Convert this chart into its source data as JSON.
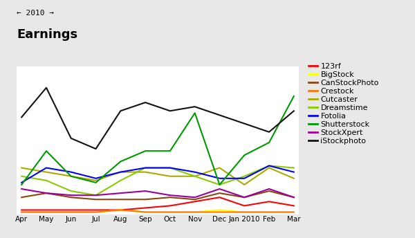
{
  "title": "Earnings",
  "subtitle": "← 2010 →",
  "months": [
    "Apr",
    "May",
    "Jun",
    "Jul",
    "Aug",
    "Sep",
    "Oct",
    "Nov",
    "Dec",
    "Jan 2010",
    "Feb",
    "Mar"
  ],
  "series": {
    "123rf": {
      "color": "#ff0000",
      "data": [
        2,
        2,
        2,
        2,
        2,
        3,
        4,
        6,
        8,
        4,
        6,
        4
      ]
    },
    "BigStock": {
      "color": "#ffff00",
      "data": [
        1,
        1,
        1,
        1,
        2,
        1,
        1,
        1,
        2,
        1,
        1,
        1
      ]
    },
    "CanStockPhoto": {
      "color": "#8B4513",
      "data": [
        8,
        10,
        8,
        7,
        7,
        7,
        8,
        7,
        10,
        8,
        11,
        8
      ]
    },
    "Crestock": {
      "color": "#ff7700",
      "data": [
        1,
        1,
        1,
        1,
        2,
        1,
        1,
        1,
        1,
        1,
        1,
        1
      ]
    },
    "Cutcaster": {
      "color": "#aaaa00",
      "data": [
        22,
        20,
        18,
        16,
        20,
        20,
        18,
        18,
        22,
        14,
        22,
        17
      ]
    },
    "Dreamstime": {
      "color": "#88cc00",
      "data": [
        18,
        16,
        11,
        9,
        16,
        22,
        22,
        18,
        14,
        18,
        23,
        22
      ]
    },
    "Fotolia": {
      "color": "#0000ff",
      "data": [
        15,
        22,
        20,
        17,
        20,
        22,
        22,
        20,
        17,
        17,
        23,
        20
      ]
    },
    "Shutterstock": {
      "color": "#009900",
      "data": [
        14,
        30,
        18,
        15,
        25,
        30,
        30,
        48,
        14,
        28,
        34,
        56
      ]
    },
    "StockXpert": {
      "color": "#990099",
      "data": [
        12,
        10,
        9,
        9,
        10,
        11,
        9,
        8,
        12,
        8,
        12,
        8
      ]
    },
    "iStockphoto": {
      "color": "#111111",
      "data": [
        46,
        60,
        36,
        31,
        49,
        53,
        49,
        51,
        47,
        43,
        39,
        49
      ]
    }
  },
  "legend_order": [
    "123rf",
    "BigStock",
    "CanStockPhoto",
    "Crestock",
    "Cutcaster",
    "Dreamstime",
    "Fotolia",
    "Shutterstock",
    "StockXpert",
    "iStockphoto"
  ],
  "background_color": "#e8e8e8",
  "plot_bg_color": "#ffffff",
  "grid_color": "#cccccc",
  "ylim": [
    0,
    70
  ],
  "figsize": [
    6.0,
    3.44
  ],
  "dpi": 100
}
